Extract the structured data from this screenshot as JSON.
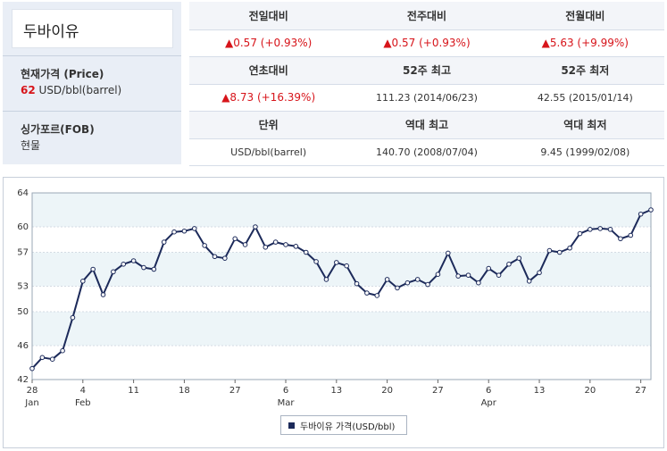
{
  "commodity": {
    "name": "두바이유",
    "price_label": "현재가격 (Price)",
    "price_value": "62",
    "price_unit": "USD/bbl(barrel)",
    "market_label": "싱가포르(FOB)",
    "market_value": "현물"
  },
  "stats": {
    "row1_headers": [
      "전일대비",
      "전주대비",
      "전월대비"
    ],
    "row1_values": [
      "▲0.57 (+0.93%)",
      "▲0.57 (+0.93%)",
      "▲5.63 (+9.99%)"
    ],
    "row2_headers": [
      "연초대비",
      "52주 최고",
      "52주 최저"
    ],
    "row2_values": [
      "▲8.73 (+16.39%)",
      "111.23 (2014/06/23)",
      "42.55 (2015/01/14)"
    ],
    "row3_headers": [
      "단위",
      "역대 최고",
      "역대 최저"
    ],
    "row3_values": [
      "USD/bbl(barrel)",
      "140.70 (2008/07/04)",
      "9.45 (1999/02/08)"
    ]
  },
  "colors": {
    "up": "#d7141a",
    "line": "#1c2a5a",
    "band": "#edf5f8"
  },
  "chart_data": {
    "type": "line",
    "ylim": [
      42,
      64
    ],
    "yticks": [
      42,
      46,
      50,
      53,
      57,
      60,
      64
    ],
    "x_day_ticks": [
      "28",
      "4",
      "11",
      "18",
      "27",
      "6",
      "13",
      "20",
      "27",
      "6",
      "13",
      "20",
      "27"
    ],
    "x_tick_index": [
      0,
      5,
      10,
      15,
      20,
      25,
      30,
      35,
      40,
      45,
      50,
      55,
      60
    ],
    "month_labels": [
      "Jan",
      "Feb",
      "Mar",
      "Apr"
    ],
    "month_tick_index": [
      0,
      5,
      25,
      45
    ],
    "grid": true,
    "series": [
      {
        "name": "두바이유 가격(USD/bbl)",
        "values": [
          43.3,
          44.6,
          44.4,
          45.4,
          49.3,
          53.6,
          55.0,
          52.0,
          54.7,
          55.6,
          56.0,
          55.2,
          55.0,
          58.2,
          59.4,
          59.5,
          59.8,
          57.8,
          56.5,
          56.3,
          58.6,
          57.9,
          60.0,
          57.6,
          58.2,
          57.9,
          57.7,
          57.0,
          55.9,
          53.8,
          55.8,
          55.4,
          53.3,
          52.2,
          51.9,
          53.8,
          52.8,
          53.4,
          53.8,
          53.2,
          54.4,
          56.9,
          54.2,
          54.3,
          53.4,
          55.1,
          54.3,
          55.6,
          56.3,
          53.6,
          54.6,
          57.2,
          57.0,
          57.5,
          59.2,
          59.7,
          59.8,
          59.7,
          58.6,
          59.0,
          61.5,
          62.0
        ]
      }
    ]
  },
  "legend": {
    "label": "두바이유 가격(USD/bbl)"
  }
}
